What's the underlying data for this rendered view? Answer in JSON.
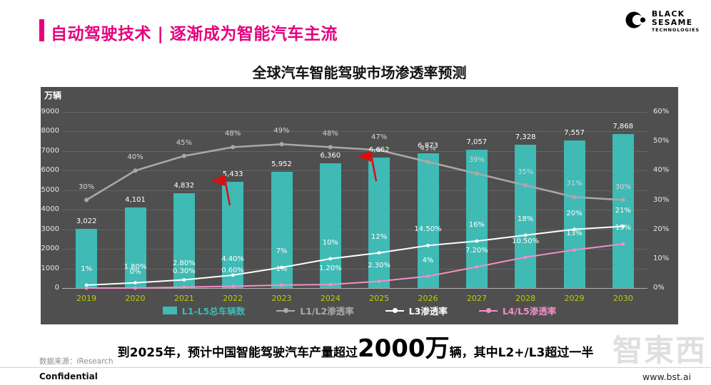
{
  "header": {
    "title": "自动驾驶技术 | 逐渐成为智能汽车主流",
    "logo": {
      "line1": "BLACK",
      "line2": "SESAME",
      "line3": "TECHNOLOGIES"
    }
  },
  "chart_data": {
    "type": "bar",
    "subtype": "bar-line-combo",
    "title": "全球汽车智能驾驶市场渗透率预测",
    "categories": [
      "2019",
      "2020",
      "2021",
      "2022",
      "2023",
      "2024",
      "2025",
      "2026",
      "2027",
      "2028",
      "2029",
      "2030"
    ],
    "left_axis": {
      "label": "万辆",
      "min": 0,
      "max": 9000,
      "step": 1000
    },
    "right_axis": {
      "min": 0,
      "max": 60,
      "step": 10,
      "suffix": "%"
    },
    "series": [
      {
        "name": "L1-L5总车辆数",
        "type": "bar",
        "axis": "left",
        "color": "#3FBAB4",
        "values": [
          3022,
          4101,
          4832,
          5433,
          5952,
          6360,
          6662,
          6873,
          7057,
          7328,
          7557,
          7868
        ],
        "labels": [
          "3,022",
          "4,101",
          "4,832",
          "5,433",
          "5,952",
          "6,360",
          "6,662",
          "6,873",
          "7,057",
          "7,328",
          "7,557",
          "7,868"
        ]
      },
      {
        "name": "L1/L2渗透率",
        "type": "line",
        "axis": "right",
        "color": "#A9A9A9",
        "label_color": "#D6D6D6",
        "values": [
          30,
          40,
          45,
          48,
          49,
          48,
          47,
          43,
          39,
          35,
          31,
          30
        ],
        "labels": [
          "30%",
          "40%",
          "45%",
          "48%",
          "49%",
          "48%",
          "47%",
          "43%",
          "39%",
          "35%",
          "31%",
          "30%"
        ]
      },
      {
        "name": "L3渗透率",
        "type": "line",
        "axis": "right",
        "color": "#FFFFFF",
        "label_color": "#FFFFFF",
        "values": [
          1,
          1.8,
          2.8,
          4.4,
          7,
          10,
          12,
          14.5,
          16,
          18,
          20,
          21
        ],
        "labels": [
          "1%",
          "1.80%",
          "2.80%",
          "4.40%",
          "7%",
          "10%",
          "12%",
          "14.50%",
          "16%",
          "18%",
          "20%",
          "21%"
        ]
      },
      {
        "name": "L4/L5渗透率",
        "type": "line",
        "axis": "right",
        "color": "#F190C6",
        "label_color": "#FFFFFF",
        "values": [
          0,
          0,
          0.3,
          0.6,
          1,
          1.2,
          2.3,
          4,
          7.2,
          10.5,
          13,
          15
        ],
        "labels": [
          "",
          "0%",
          "0.30%",
          "0.60%",
          "1%",
          "1.20%",
          "2.30%",
          "4%",
          "7.20%",
          "10.50%",
          "13%",
          "15%"
        ]
      }
    ],
    "flags_at": [
      "2022",
      "2025"
    ],
    "legend_position": "bottom",
    "grid": true,
    "panel_bg": "#4F4F4F",
    "year_label_color": "#BCCE00",
    "flag_color": "#D90E0E"
  },
  "footnote": {
    "part1": "到2025年，预计中国智能驾驶汽车产量超过",
    "big": "2000万",
    "part2": "辆，其中L2+/L3超过一半"
  },
  "footer": {
    "source": "数据来源：iResearch",
    "confidential": "Confidential",
    "website": "www.bst.ai",
    "watermark": "智東西"
  },
  "colors": {
    "accent": "#E5007D"
  }
}
